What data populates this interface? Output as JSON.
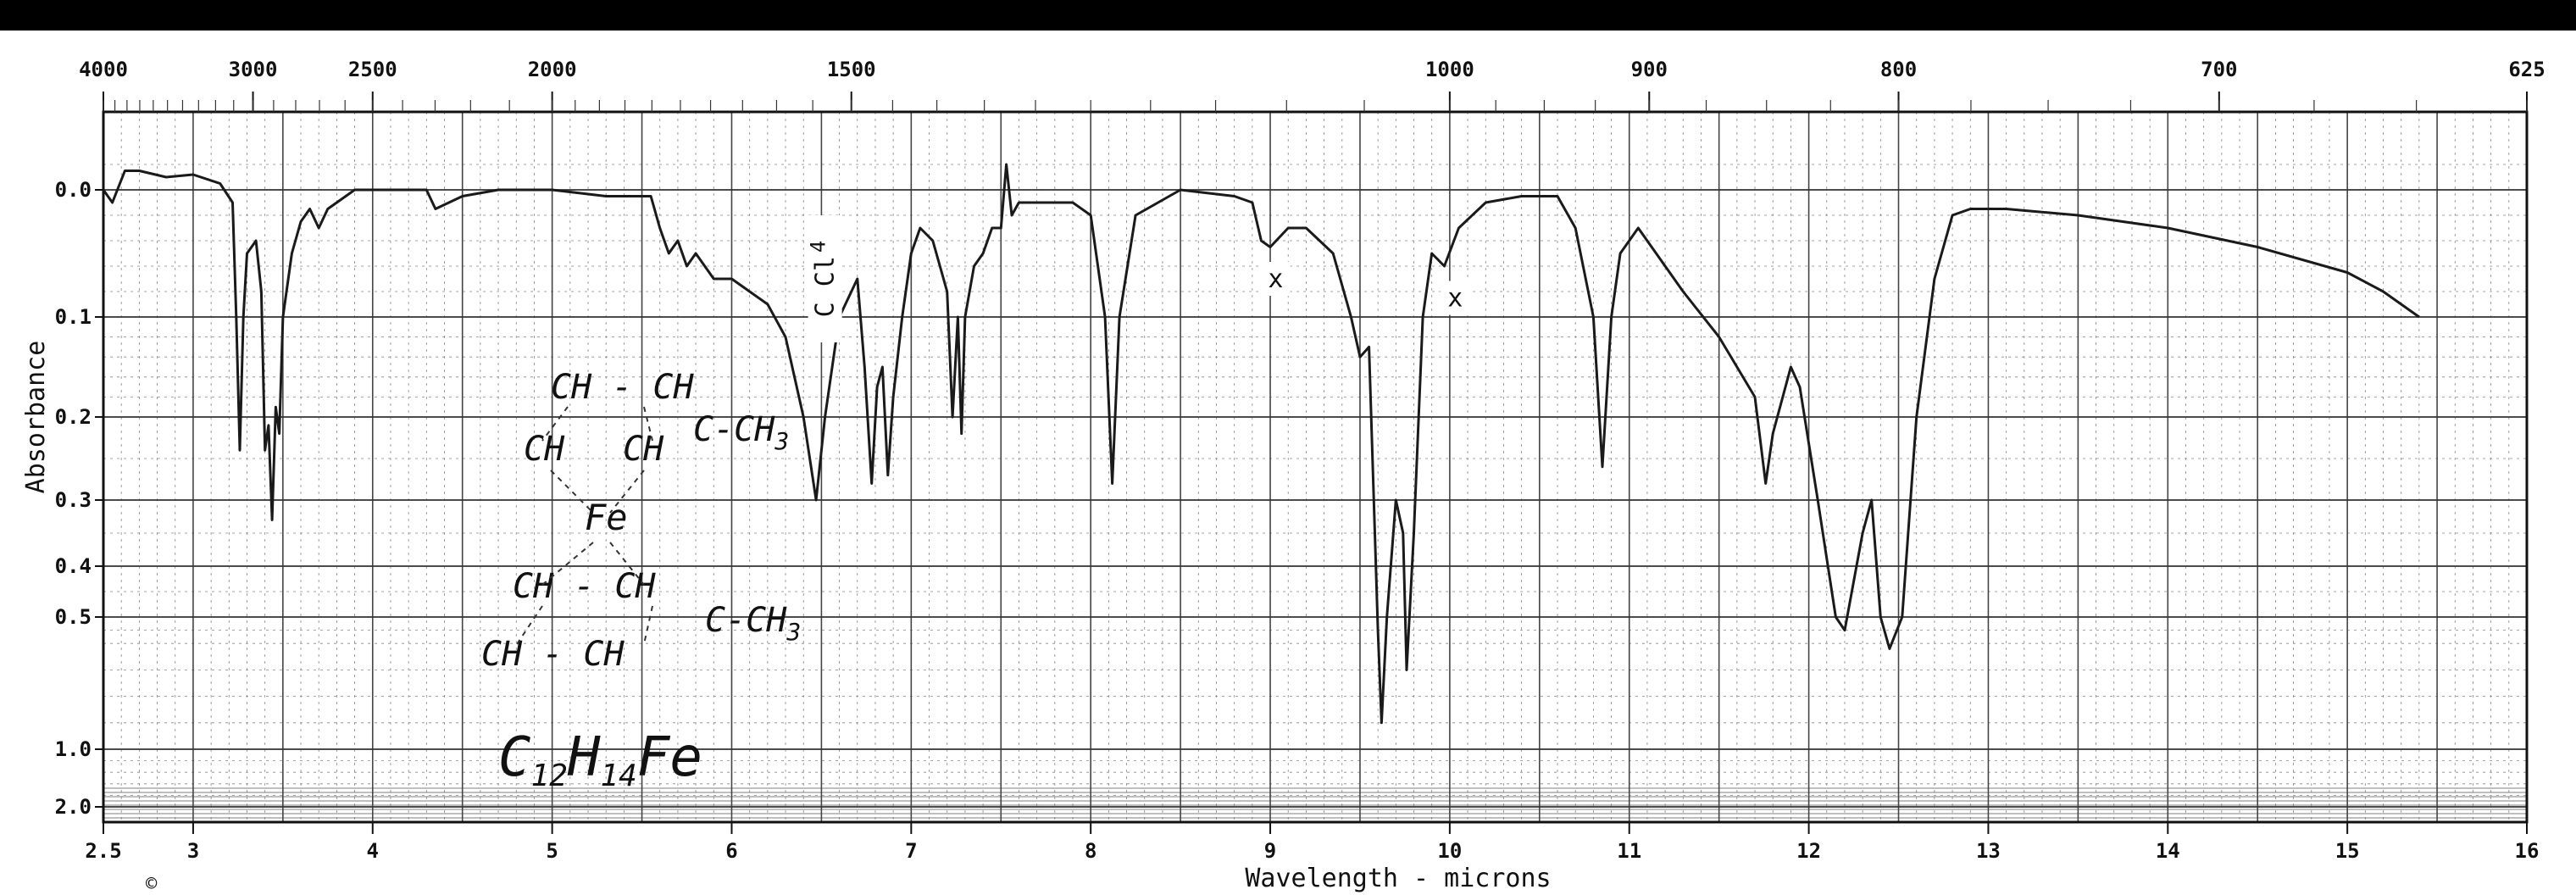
{
  "page": {
    "copyright_mark": "©"
  },
  "chart_data": {
    "type": "line",
    "title": "",
    "xlabel": "Wavelength - microns",
    "ylabel": "Absorbance",
    "x_unit": "microns",
    "x_range": [
      2.5,
      16
    ],
    "x_ticks": [
      {
        "v": 2.5,
        "label": "2.5"
      },
      {
        "v": 3,
        "label": "3"
      },
      {
        "v": 4,
        "label": "4"
      },
      {
        "v": 5,
        "label": "5"
      },
      {
        "v": 6,
        "label": "6"
      },
      {
        "v": 7,
        "label": "7"
      },
      {
        "v": 8,
        "label": "8"
      },
      {
        "v": 9,
        "label": "9"
      },
      {
        "v": 10,
        "label": "10"
      },
      {
        "v": 11,
        "label": "11"
      },
      {
        "v": 12,
        "label": "12"
      },
      {
        "v": 13,
        "label": "13"
      },
      {
        "v": 14,
        "label": "14"
      },
      {
        "v": 15,
        "label": "15"
      },
      {
        "v": 16,
        "label": "16"
      }
    ],
    "top_axis_unit": "cm-1",
    "top_ticks": [
      {
        "v": 4000,
        "label": "4000"
      },
      {
        "v": 3000,
        "label": "3000"
      },
      {
        "v": 2500,
        "label": "2500"
      },
      {
        "v": 2000,
        "label": "2000"
      },
      {
        "v": 1500,
        "label": "1500"
      },
      {
        "v": 1000,
        "label": "1000"
      },
      {
        "v": 900,
        "label": "900"
      },
      {
        "v": 800,
        "label": "800"
      },
      {
        "v": 700,
        "label": "700"
      },
      {
        "v": 625,
        "label": "625"
      }
    ],
    "y_scale": "absorbance",
    "y_range": [
      0.0,
      2.0
    ],
    "y_ticks": [
      {
        "v": 0.0,
        "label": "0.0"
      },
      {
        "v": 0.1,
        "label": "0.1"
      },
      {
        "v": 0.2,
        "label": "0.2"
      },
      {
        "v": 0.3,
        "label": "0.3"
      },
      {
        "v": 0.4,
        "label": "0.4"
      },
      {
        "v": 0.5,
        "label": "0.5"
      },
      {
        "v": 1.0,
        "label": "1.0"
      },
      {
        "v": 2.0,
        "label": "2.0"
      }
    ],
    "grid": true,
    "series": [
      {
        "color": "#1a1a1a",
        "points": [
          [
            2.5,
            0.0
          ],
          [
            2.55,
            0.01
          ],
          [
            2.62,
            -0.015
          ],
          [
            2.7,
            -0.015
          ],
          [
            2.85,
            -0.01
          ],
          [
            3.0,
            -0.012
          ],
          [
            3.15,
            -0.005
          ],
          [
            3.22,
            0.01
          ],
          [
            3.24,
            0.1
          ],
          [
            3.26,
            0.24
          ],
          [
            3.28,
            0.1
          ],
          [
            3.3,
            0.05
          ],
          [
            3.35,
            0.04
          ],
          [
            3.38,
            0.08
          ],
          [
            3.4,
            0.24
          ],
          [
            3.42,
            0.21
          ],
          [
            3.44,
            0.33
          ],
          [
            3.46,
            0.19
          ],
          [
            3.48,
            0.22
          ],
          [
            3.5,
            0.1
          ],
          [
            3.55,
            0.05
          ],
          [
            3.6,
            0.025
          ],
          [
            3.65,
            0.015
          ],
          [
            3.7,
            0.03
          ],
          [
            3.75,
            0.015
          ],
          [
            3.9,
            0.0
          ],
          [
            4.1,
            0.0
          ],
          [
            4.3,
            0.0
          ],
          [
            4.35,
            0.015
          ],
          [
            4.5,
            0.005
          ],
          [
            4.7,
            0.0
          ],
          [
            5.0,
            0.0
          ],
          [
            5.3,
            0.005
          ],
          [
            5.55,
            0.005
          ],
          [
            5.6,
            0.03
          ],
          [
            5.65,
            0.05
          ],
          [
            5.7,
            0.04
          ],
          [
            5.75,
            0.06
          ],
          [
            5.8,
            0.05
          ],
          [
            5.9,
            0.07
          ],
          [
            6.0,
            0.07
          ],
          [
            6.1,
            0.08
          ],
          [
            6.2,
            0.09
          ],
          [
            6.3,
            0.12
          ],
          [
            6.4,
            0.2
          ],
          [
            6.47,
            0.3
          ],
          [
            6.52,
            0.2
          ],
          [
            6.6,
            0.1
          ],
          [
            6.7,
            0.07
          ],
          [
            6.74,
            0.15
          ],
          [
            6.78,
            0.28
          ],
          [
            6.81,
            0.17
          ],
          [
            6.84,
            0.15
          ],
          [
            6.87,
            0.27
          ],
          [
            6.9,
            0.18
          ],
          [
            6.95,
            0.1
          ],
          [
            7.0,
            0.05
          ],
          [
            7.05,
            0.03
          ],
          [
            7.12,
            0.04
          ],
          [
            7.2,
            0.08
          ],
          [
            7.23,
            0.2
          ],
          [
            7.26,
            0.1
          ],
          [
            7.28,
            0.22
          ],
          [
            7.3,
            0.1
          ],
          [
            7.35,
            0.06
          ],
          [
            7.4,
            0.05
          ],
          [
            7.45,
            0.03
          ],
          [
            7.5,
            0.03
          ],
          [
            7.53,
            -0.02
          ],
          [
            7.56,
            0.02
          ],
          [
            7.6,
            0.01
          ],
          [
            7.7,
            0.01
          ],
          [
            7.8,
            0.01
          ],
          [
            7.9,
            0.01
          ],
          [
            8.0,
            0.02
          ],
          [
            8.08,
            0.1
          ],
          [
            8.12,
            0.28
          ],
          [
            8.16,
            0.1
          ],
          [
            8.25,
            0.02
          ],
          [
            8.5,
            0.0
          ],
          [
            8.8,
            0.005
          ],
          [
            8.9,
            0.01
          ],
          [
            8.95,
            0.04
          ],
          [
            9.0,
            0.045
          ],
          [
            9.1,
            0.03
          ],
          [
            9.2,
            0.03
          ],
          [
            9.35,
            0.05
          ],
          [
            9.45,
            0.1
          ],
          [
            9.5,
            0.14
          ],
          [
            9.55,
            0.13
          ],
          [
            9.6,
            0.55
          ],
          [
            9.62,
            0.9
          ],
          [
            9.65,
            0.5
          ],
          [
            9.7,
            0.3
          ],
          [
            9.74,
            0.35
          ],
          [
            9.76,
            0.7
          ],
          [
            9.8,
            0.35
          ],
          [
            9.85,
            0.1
          ],
          [
            9.9,
            0.05
          ],
          [
            9.97,
            0.06
          ],
          [
            10.05,
            0.03
          ],
          [
            10.2,
            0.01
          ],
          [
            10.4,
            0.005
          ],
          [
            10.6,
            0.005
          ],
          [
            10.7,
            0.03
          ],
          [
            10.8,
            0.1
          ],
          [
            10.85,
            0.26
          ],
          [
            10.9,
            0.1
          ],
          [
            10.95,
            0.05
          ],
          [
            11.05,
            0.03
          ],
          [
            11.15,
            0.05
          ],
          [
            11.3,
            0.08
          ],
          [
            11.5,
            0.12
          ],
          [
            11.7,
            0.18
          ],
          [
            11.76,
            0.28
          ],
          [
            11.8,
            0.22
          ],
          [
            11.9,
            0.15
          ],
          [
            11.95,
            0.17
          ],
          [
            12.05,
            0.3
          ],
          [
            12.15,
            0.5
          ],
          [
            12.2,
            0.55
          ],
          [
            12.3,
            0.35
          ],
          [
            12.35,
            0.3
          ],
          [
            12.4,
            0.5
          ],
          [
            12.45,
            0.62
          ],
          [
            12.52,
            0.5
          ],
          [
            12.6,
            0.2
          ],
          [
            12.7,
            0.07
          ],
          [
            12.8,
            0.02
          ],
          [
            12.9,
            0.015
          ],
          [
            13.1,
            0.015
          ],
          [
            13.5,
            0.02
          ],
          [
            14.0,
            0.03
          ],
          [
            14.5,
            0.045
          ],
          [
            15.0,
            0.065
          ],
          [
            15.2,
            0.08
          ],
          [
            15.4,
            0.1
          ]
        ]
      }
    ],
    "annotations": [
      {
        "text": "C Cl",
        "subscript": "4",
        "x": 6.52,
        "y": 0.07,
        "rotation": -90
      },
      {
        "text": "x",
        "x": 9.03,
        "y": 0.07,
        "rotation": 0
      },
      {
        "text": "x",
        "x": 10.03,
        "y": 0.085,
        "rotation": 0
      }
    ],
    "handwritten": {
      "formula_main": "C",
      "formula_sub1": "12",
      "formula_mid": "H",
      "formula_sub2": "14",
      "formula_end": "Fe",
      "structure_top_row": "CH - CH",
      "structure_top_chain": "C-CH",
      "structure_top_chain_sub": "3",
      "structure_left_top": "CH",
      "structure_left_mid": "CH",
      "structure_center": "Fe",
      "structure_bot_row": "CH - CH",
      "structure_bot_chain": "C-CH",
      "structure_bot_chain_sub": "3",
      "structure_bottom": "CH - CH"
    }
  }
}
